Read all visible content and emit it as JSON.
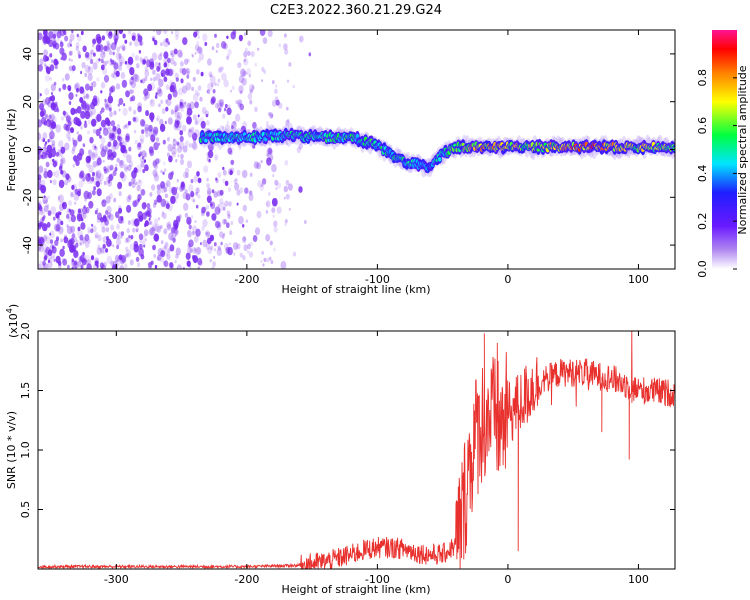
{
  "figure_title": "C2E3.2022.360.21.29.G24",
  "colors": {
    "snr_line": "#e8302d",
    "spectrogram_noise": "#7a2cf0",
    "axis": "#000000",
    "colormap": [
      "#ffffff",
      "#8a2be2",
      "#1e1eff",
      "#00e5ff",
      "#00ff40",
      "#ffff00",
      "#ff8000",
      "#ff0000",
      "#ff1493"
    ]
  },
  "chart_data": [
    {
      "type": "heatmap",
      "xlabel": "Height of straight line (km)",
      "ylabel": "Frequency (Hz)",
      "xlim": [
        -360,
        128
      ],
      "ylim": [
        -50,
        50
      ],
      "xticks": [
        -300,
        -200,
        -100,
        0,
        100
      ],
      "yticks": [
        -40,
        -20,
        0,
        20,
        40
      ],
      "colorbar": {
        "label": "Normalized spectral amplitude",
        "range": [
          0,
          1
        ],
        "ticks": [
          0.0,
          0.2,
          0.4,
          0.6,
          0.8
        ]
      },
      "signal_track": {
        "x": [
          -235,
          -200,
          -170,
          -140,
          -120,
          -100,
          -90,
          -80,
          -70,
          -60,
          -50,
          -40,
          -30,
          -20,
          -10,
          0,
          20,
          40,
          60,
          80,
          100,
          128
        ],
        "y": [
          5,
          5,
          6,
          5,
          5,
          2,
          -2,
          -5,
          -6,
          -7,
          -2,
          1,
          1,
          1,
          1,
          1,
          1,
          1,
          1,
          1,
          1,
          1
        ],
        "amplitude": [
          0.5,
          0.5,
          0.5,
          0.55,
          0.55,
          0.55,
          0.5,
          0.5,
          0.45,
          0.45,
          0.5,
          0.6,
          0.75,
          0.8,
          0.8,
          0.75,
          0.7,
          0.75,
          0.85,
          0.8,
          0.7,
          0.6
        ]
      },
      "noise_region_x": [
        -360,
        -160
      ]
    },
    {
      "type": "line",
      "xlabel": "Height of straight line (km)",
      "ylabel": "SNR (10 * v/v)",
      "y_scale_label": "(x10",
      "y_scale_exponent": "4",
      "y_scale_suffix": ")",
      "xlim": [
        -360,
        128
      ],
      "ylim": [
        0,
        2.0
      ],
      "xticks": [
        -300,
        -200,
        -100,
        0,
        100
      ],
      "yticks": [
        0.5,
        1.0,
        1.5,
        2.0
      ],
      "ytick_labels": [
        "0.5",
        "1.0",
        "1.5",
        "2.0"
      ],
      "series": [
        {
          "x": [
            -360,
            -300,
            -250,
            -200,
            -160,
            -140,
            -120,
            -110,
            -100,
            -90,
            -80,
            -70,
            -60,
            -50,
            -40,
            -35,
            -30,
            -25,
            -20,
            -15,
            -10,
            -5,
            0,
            10,
            20,
            30,
            40,
            50,
            60,
            70,
            80,
            90,
            100,
            110,
            120,
            128
          ],
          "y": [
            0.02,
            0.02,
            0.02,
            0.02,
            0.03,
            0.06,
            0.12,
            0.16,
            0.18,
            0.18,
            0.17,
            0.14,
            0.12,
            0.12,
            0.2,
            0.45,
            0.85,
            1.1,
            1.25,
            1.3,
            1.25,
            1.2,
            1.3,
            1.4,
            1.55,
            1.6,
            1.65,
            1.65,
            1.65,
            1.62,
            1.6,
            1.55,
            1.5,
            1.5,
            1.48,
            1.48
          ],
          "spikes": [
            {
              "x": -18,
              "y": 1.98
            },
            {
              "x": -8,
              "y": 1.9
            },
            {
              "x": 8,
              "y": 0.15
            },
            {
              "x": 72,
              "y": 1.15
            },
            {
              "x": 93,
              "y": 0.92
            },
            {
              "x": 95,
              "y": 2.0
            }
          ]
        }
      ]
    }
  ]
}
